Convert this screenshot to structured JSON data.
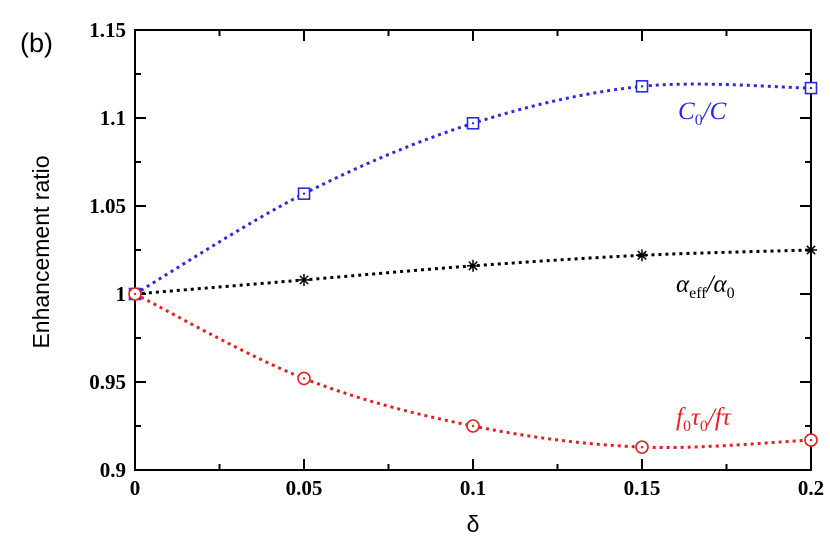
{
  "panel_label": "(b)",
  "chart_data": {
    "type": "line",
    "xlabel": "δ",
    "ylabel": "Enhancement ratio",
    "xlim": [
      0,
      0.2
    ],
    "ylim": [
      0.9,
      1.15
    ],
    "x_ticks": [
      "0",
      "0.05",
      "0.1",
      "0.15",
      "0.2"
    ],
    "y_ticks": [
      "0.9",
      "0.95",
      "1",
      "1.05",
      "1.1",
      "1.15"
    ],
    "grid": false,
    "x": [
      0,
      0.05,
      0.1,
      0.15,
      0.2
    ],
    "series": [
      {
        "key": "c0",
        "label": {
          "main": "C",
          "sub1": "0",
          "rest": "/C"
        },
        "color": "#2a2ae6",
        "marker": "square",
        "values": [
          1.0,
          1.057,
          1.097,
          1.118,
          1.117
        ]
      },
      {
        "key": "alpha",
        "label": {
          "main": "α",
          "sub1": "eff",
          "rest": "/α",
          "sub2": "0"
        },
        "color": "#000000",
        "marker": "asterisk",
        "values": [
          1.0,
          1.008,
          1.016,
          1.022,
          1.025
        ]
      },
      {
        "key": "ftau",
        "label": {
          "main": "f",
          "sub1": "0",
          "mid": "τ",
          "sub2": "0",
          "rest": "/fτ"
        },
        "color": "#e62020",
        "marker": "circle",
        "values": [
          1.0,
          0.952,
          0.925,
          0.913,
          0.917
        ]
      }
    ]
  }
}
